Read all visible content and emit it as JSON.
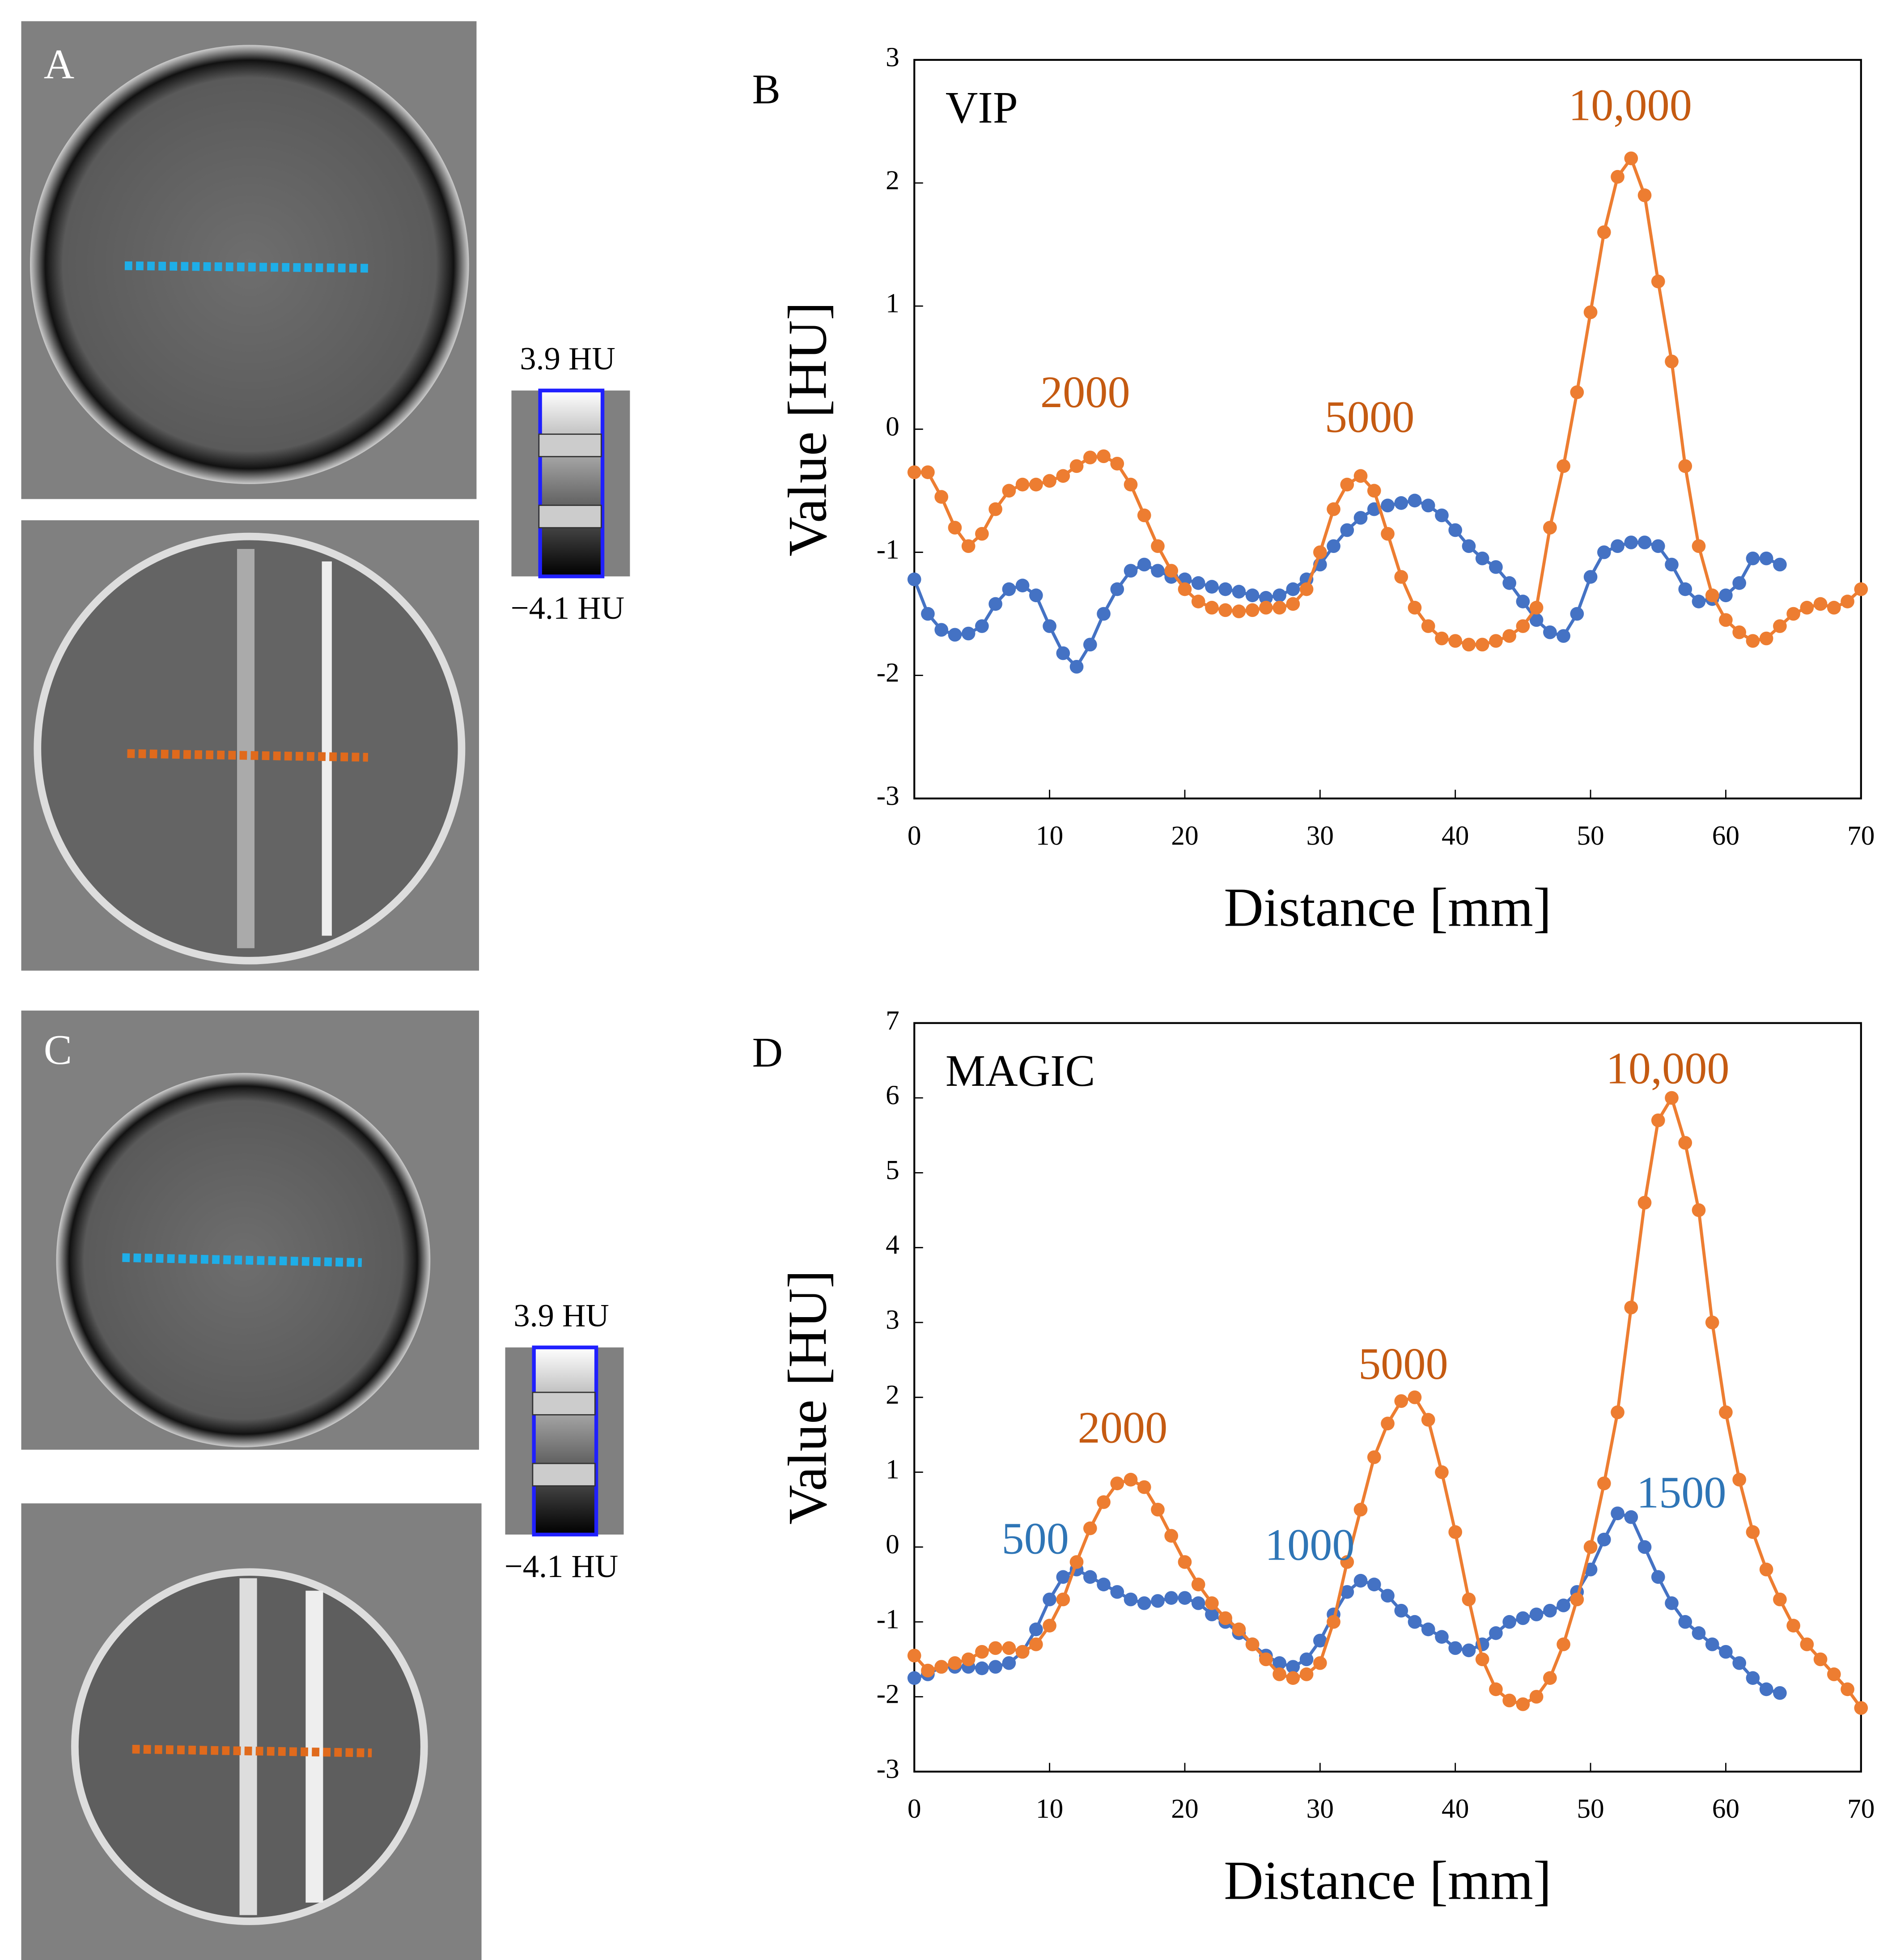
{
  "panels": [
    {
      "label": "A",
      "colorbar_max": "3.9 HU",
      "colorbar_min": "−4.1 HU"
    },
    {
      "label": "C",
      "colorbar_max": "3.9 HU",
      "colorbar_min": "−4.1 HU"
    }
  ],
  "chart_data": [
    {
      "type": "line",
      "panel_label": "B",
      "title": "VIP",
      "xlabel": "Distance [mm]",
      "ylabel": "Value [HU]",
      "xlim": [
        0,
        70
      ],
      "xticks": [
        0,
        10,
        20,
        30,
        40,
        50,
        60,
        70
      ],
      "ylim": [
        -3,
        3
      ],
      "yticks": [
        -3,
        -2,
        -1,
        0,
        1,
        2,
        3
      ],
      "annotations": [
        {
          "text": "10,000",
          "color": "#c55a11"
        },
        {
          "text": "2000",
          "color": "#c55a11"
        },
        {
          "text": "5000",
          "color": "#c55a11"
        }
      ],
      "series": [
        {
          "color": "#4472c4",
          "x": [
            0,
            1,
            2,
            3,
            4,
            5,
            6,
            7,
            8,
            9,
            10,
            11,
            12,
            13,
            14,
            15,
            16,
            17,
            18,
            19,
            20,
            21,
            22,
            23,
            24,
            25,
            26,
            27,
            28,
            29,
            30,
            31,
            32,
            33,
            34,
            35,
            36,
            37,
            38,
            39,
            40,
            41,
            42,
            43,
            44,
            45,
            46,
            47,
            48,
            49,
            50,
            51,
            52,
            53,
            54,
            55,
            56,
            57,
            58,
            59,
            60,
            61,
            62,
            63,
            64
          ],
          "values": [
            -1.22,
            -1.5,
            -1.63,
            -1.67,
            -1.66,
            -1.6,
            -1.42,
            -1.3,
            -1.27,
            -1.35,
            -1.6,
            -1.82,
            -1.93,
            -1.75,
            -1.5,
            -1.3,
            -1.15,
            -1.1,
            -1.15,
            -1.2,
            -1.22,
            -1.25,
            -1.28,
            -1.3,
            -1.32,
            -1.35,
            -1.37,
            -1.35,
            -1.3,
            -1.22,
            -1.1,
            -0.95,
            -0.82,
            -0.72,
            -0.65,
            -0.62,
            -0.6,
            -0.58,
            -0.62,
            -0.7,
            -0.82,
            -0.95,
            -1.05,
            -1.12,
            -1.25,
            -1.4,
            -1.55,
            -1.65,
            -1.68,
            -1.5,
            -1.2,
            -1.0,
            -0.95,
            -0.92,
            -0.92,
            -0.95,
            -1.1,
            -1.3,
            -1.4,
            -1.38,
            -1.35,
            -1.25,
            -1.05,
            -1.05,
            -1.1
          ]
        },
        {
          "color": "#ed7d31",
          "x": [
            0,
            1,
            2,
            3,
            4,
            5,
            6,
            7,
            8,
            9,
            10,
            11,
            12,
            13,
            14,
            15,
            16,
            17,
            18,
            19,
            20,
            21,
            22,
            23,
            24,
            25,
            26,
            27,
            28,
            29,
            30,
            31,
            32,
            33,
            34,
            35,
            36,
            37,
            38,
            39,
            40,
            41,
            42,
            43,
            44,
            45,
            46,
            47,
            48,
            49,
            50,
            51,
            52,
            53,
            54,
            55,
            56,
            57,
            58,
            59,
            60,
            61,
            62,
            63,
            64,
            65,
            66,
            67,
            68,
            69,
            70
          ],
          "values": [
            -0.35,
            -0.35,
            -0.55,
            -0.8,
            -0.95,
            -0.85,
            -0.65,
            -0.5,
            -0.45,
            -0.45,
            -0.42,
            -0.38,
            -0.3,
            -0.23,
            -0.22,
            -0.28,
            -0.45,
            -0.7,
            -0.95,
            -1.15,
            -1.3,
            -1.4,
            -1.45,
            -1.47,
            -1.48,
            -1.47,
            -1.45,
            -1.45,
            -1.42,
            -1.3,
            -1.0,
            -0.65,
            -0.45,
            -0.38,
            -0.5,
            -0.85,
            -1.2,
            -1.45,
            -1.6,
            -1.7,
            -1.72,
            -1.75,
            -1.75,
            -1.72,
            -1.68,
            -1.6,
            -1.45,
            -0.8,
            -0.3,
            0.3,
            0.95,
            1.6,
            2.05,
            2.2,
            1.9,
            1.2,
            0.55,
            -0.3,
            -0.95,
            -1.35,
            -1.55,
            -1.65,
            -1.72,
            -1.7,
            -1.6,
            -1.5,
            -1.45,
            -1.42,
            -1.45,
            -1.4,
            -1.3
          ]
        }
      ]
    },
    {
      "type": "line",
      "panel_label": "D",
      "title": "MAGIC",
      "xlabel": "Distance [mm]",
      "ylabel": "Value [HU]",
      "xlim": [
        0,
        70
      ],
      "xticks": [
        0,
        10,
        20,
        30,
        40,
        50,
        60,
        70
      ],
      "ylim": [
        -3,
        7
      ],
      "yticks": [
        -3,
        -2,
        -1,
        0,
        1,
        2,
        3,
        4,
        5,
        6,
        7
      ],
      "annotations": [
        {
          "text": "10,000",
          "color": "#c55a11"
        },
        {
          "text": "5000",
          "color": "#c55a11"
        },
        {
          "text": "2000",
          "color": "#c55a11"
        },
        {
          "text": "500",
          "color": "#2e75b6"
        },
        {
          "text": "1000",
          "color": "#2e75b6"
        },
        {
          "text": "1500",
          "color": "#2e75b6"
        }
      ],
      "series": [
        {
          "color": "#4472c4",
          "x": [
            0,
            1,
            2,
            3,
            4,
            5,
            6,
            7,
            8,
            9,
            10,
            11,
            12,
            13,
            14,
            15,
            16,
            17,
            18,
            19,
            20,
            21,
            22,
            23,
            24,
            25,
            26,
            27,
            28,
            29,
            30,
            31,
            32,
            33,
            34,
            35,
            36,
            37,
            38,
            39,
            40,
            41,
            42,
            43,
            44,
            45,
            46,
            47,
            48,
            49,
            50,
            51,
            52,
            53,
            54,
            55,
            56,
            57,
            58,
            59,
            60,
            61,
            62,
            63,
            64
          ],
          "values": [
            -1.75,
            -1.7,
            -1.6,
            -1.6,
            -1.6,
            -1.62,
            -1.6,
            -1.55,
            -1.4,
            -1.1,
            -0.7,
            -0.4,
            -0.3,
            -0.4,
            -0.5,
            -0.6,
            -0.7,
            -0.75,
            -0.72,
            -0.68,
            -0.68,
            -0.75,
            -0.9,
            -1.0,
            -1.15,
            -1.3,
            -1.45,
            -1.55,
            -1.6,
            -1.5,
            -1.25,
            -0.9,
            -0.6,
            -0.45,
            -0.5,
            -0.65,
            -0.85,
            -1.0,
            -1.1,
            -1.2,
            -1.35,
            -1.38,
            -1.3,
            -1.15,
            -1.0,
            -0.95,
            -0.9,
            -0.85,
            -0.78,
            -0.6,
            -0.3,
            0.1,
            0.45,
            0.4,
            0.0,
            -0.4,
            -0.75,
            -1.0,
            -1.15,
            -1.3,
            -1.4,
            -1.55,
            -1.75,
            -1.9,
            -1.95
          ]
        },
        {
          "color": "#ed7d31",
          "x": [
            0,
            1,
            2,
            3,
            4,
            5,
            6,
            7,
            8,
            9,
            10,
            11,
            12,
            13,
            14,
            15,
            16,
            17,
            18,
            19,
            20,
            21,
            22,
            23,
            24,
            25,
            26,
            27,
            28,
            29,
            30,
            31,
            32,
            33,
            34,
            35,
            36,
            37,
            38,
            39,
            40,
            41,
            42,
            43,
            44,
            45,
            46,
            47,
            48,
            49,
            50,
            51,
            52,
            53,
            54,
            55,
            56,
            57,
            58,
            59,
            60,
            61,
            62,
            63,
            64,
            65,
            66,
            67,
            68,
            69,
            70
          ],
          "values": [
            -1.45,
            -1.65,
            -1.6,
            -1.55,
            -1.5,
            -1.4,
            -1.35,
            -1.35,
            -1.4,
            -1.3,
            -1.05,
            -0.7,
            -0.2,
            0.25,
            0.6,
            0.85,
            0.9,
            0.8,
            0.5,
            0.15,
            -0.2,
            -0.5,
            -0.75,
            -0.95,
            -1.1,
            -1.3,
            -1.5,
            -1.7,
            -1.75,
            -1.7,
            -1.55,
            -1.0,
            -0.2,
            0.5,
            1.2,
            1.65,
            1.95,
            2.0,
            1.7,
            1.0,
            0.2,
            -0.7,
            -1.5,
            -1.9,
            -2.05,
            -2.1,
            -2.0,
            -1.75,
            -1.3,
            -0.7,
            0.0,
            0.85,
            1.8,
            3.2,
            4.6,
            5.7,
            6.0,
            5.4,
            4.5,
            3.0,
            1.8,
            0.9,
            0.2,
            -0.3,
            -0.7,
            -1.05,
            -1.3,
            -1.5,
            -1.7,
            -1.9,
            -2.15
          ]
        }
      ]
    }
  ]
}
